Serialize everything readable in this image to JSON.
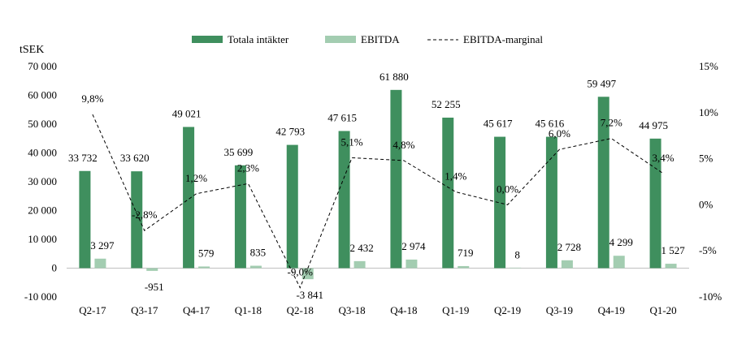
{
  "chart_data": {
    "type": "bar",
    "y_unit_label": "tSEK",
    "categories": [
      "Q2-17",
      "Q3-17",
      "Q4-17",
      "Q1-18",
      "Q2-18",
      "Q3-18",
      "Q4-18",
      "Q1-19",
      "Q2-19",
      "Q3-19",
      "Q4-19",
      "Q1-20"
    ],
    "series": [
      {
        "name": "Totala intäkter",
        "type": "bar",
        "axis": "left",
        "color": "#3f8f5e",
        "values": [
          33732,
          33620,
          49021,
          35699,
          42793,
          47615,
          61880,
          52255,
          45617,
          45616,
          59497,
          44975
        ],
        "labels": [
          "33 732",
          "33 620",
          "49 021",
          "35 699",
          "42 793",
          "47 615",
          "61 880",
          "52 255",
          "45 617",
          "45 616",
          "59 497",
          "44 975"
        ]
      },
      {
        "name": "EBITDA",
        "type": "bar",
        "axis": "left",
        "color": "#a3cdb1",
        "values": [
          3297,
          -951,
          579,
          835,
          -3841,
          2432,
          2974,
          719,
          8,
          2728,
          4299,
          1527
        ],
        "labels": [
          "3 297",
          "-951",
          "579",
          "835",
          "-3 841",
          "2 432",
          "2 974",
          "719",
          "8",
          "2 728",
          "4 299",
          "1 527"
        ]
      },
      {
        "name": "EBITDA-marginal",
        "type": "line",
        "style": "dashed",
        "axis": "right",
        "color": "#000000",
        "values": [
          9.8,
          -2.8,
          1.2,
          2.3,
          -9.0,
          5.1,
          4.8,
          1.4,
          0.0,
          6.0,
          7.2,
          3.4
        ],
        "labels": [
          "9,8%",
          "-2,8%",
          "1,2%",
          "2,3%",
          "-9,0%",
          "5,1%",
          "4,8%",
          "1,4%",
          "0,0%",
          "6,0%",
          "7,2%",
          "3,4%"
        ]
      }
    ],
    "y_left": {
      "min": -10000,
      "max": 70000,
      "ticks": [
        -10000,
        0,
        10000,
        20000,
        30000,
        40000,
        50000,
        60000,
        70000
      ],
      "tick_labels": [
        "-10 000",
        "0",
        "10 000",
        "20 000",
        "30 000",
        "40 000",
        "50 000",
        "60 000",
        "70 000"
      ]
    },
    "y_right": {
      "min": -10,
      "max": 15,
      "ticks": [
        -10,
        -5,
        0,
        5,
        10,
        15
      ],
      "tick_labels": [
        "-10%",
        "-5%",
        "0%",
        "5%",
        "10%",
        "15%"
      ]
    },
    "legend_position": "top-center",
    "grid": false
  }
}
